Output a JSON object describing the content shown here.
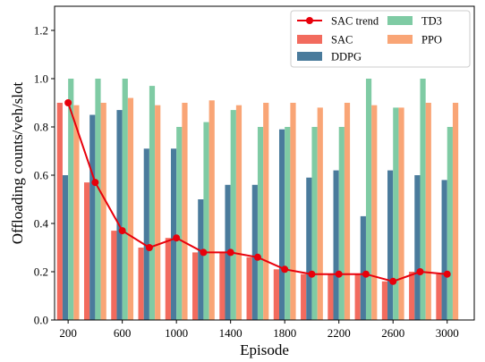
{
  "chart_data": {
    "type": "bar",
    "xlabel": "Episode",
    "ylabel": "Offloading counts/veh/slot",
    "ylim": [
      0,
      1.3
    ],
    "yticks": [
      "0.0",
      "0.2",
      "0.4",
      "0.6",
      "0.8",
      "1.0",
      "1.2"
    ],
    "xticks": [
      "200",
      "600",
      "1000",
      "1400",
      "1800",
      "2200",
      "2600",
      "3000"
    ],
    "x": [
      200,
      400,
      600,
      800,
      1000,
      1200,
      1400,
      1600,
      1800,
      2000,
      2200,
      2400,
      2600,
      2800,
      3000
    ],
    "grid": false,
    "legend_position": "top-right",
    "series": [
      {
        "name": "SAC",
        "color": "#F26B5E",
        "values": [
          0.9,
          0.57,
          0.37,
          0.3,
          0.34,
          0.28,
          0.28,
          0.26,
          0.21,
          0.19,
          0.19,
          0.19,
          0.16,
          0.2,
          0.19
        ]
      },
      {
        "name": "DDPG",
        "color": "#4A7B9C",
        "values": [
          0.6,
          0.85,
          0.87,
          0.71,
          0.71,
          0.5,
          0.56,
          0.56,
          0.79,
          0.59,
          0.62,
          0.43,
          0.62,
          0.6,
          0.58
        ]
      },
      {
        "name": "TD3",
        "color": "#7FCBA4",
        "values": [
          1.0,
          1.0,
          1.0,
          0.97,
          0.8,
          0.82,
          0.87,
          0.8,
          0.8,
          0.8,
          0.8,
          1.0,
          0.88,
          1.0,
          0.8
        ]
      },
      {
        "name": "PPO",
        "color": "#F9A576",
        "values": [
          0.89,
          0.9,
          0.92,
          0.89,
          0.9,
          0.91,
          0.89,
          0.9,
          0.9,
          0.88,
          0.9,
          0.89,
          0.88,
          0.9,
          0.9
        ]
      }
    ],
    "trend": {
      "name": "SAC trend",
      "color": "#E8000B",
      "values": [
        0.9,
        0.57,
        0.37,
        0.3,
        0.34,
        0.28,
        0.28,
        0.26,
        0.21,
        0.19,
        0.19,
        0.19,
        0.16,
        0.2,
        0.19
      ]
    }
  }
}
